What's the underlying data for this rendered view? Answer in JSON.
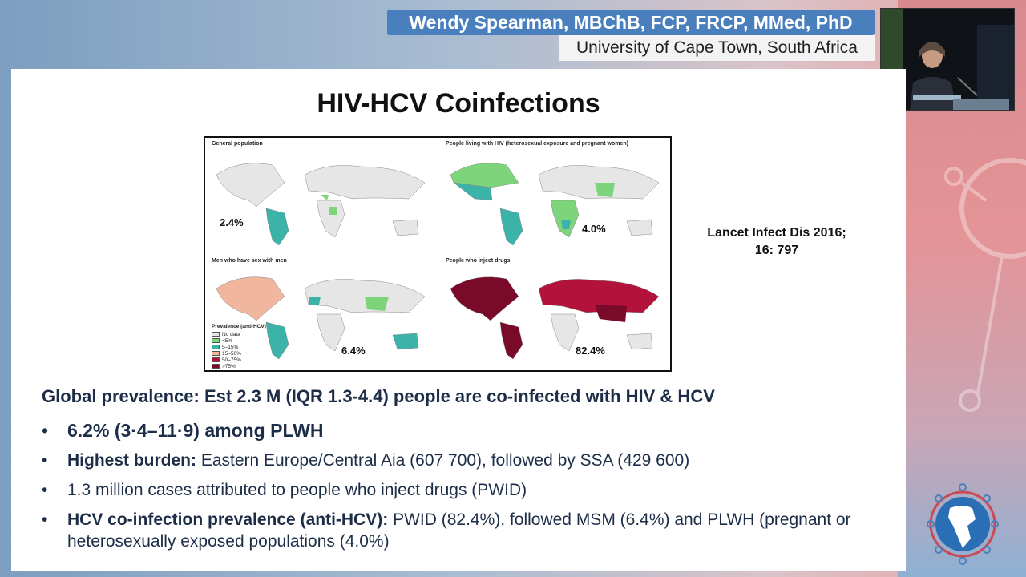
{
  "presenter": {
    "name": "Wendy Spearman, MBChB, FCP, FRCP, MMed, PhD",
    "affiliation": "University of Cape Town, South Africa"
  },
  "slide": {
    "title": "HIV-HCV Coinfections",
    "figure": {
      "panels": [
        {
          "title": "General population",
          "percent": "2.4%"
        },
        {
          "title": "People living with HIV (heterosexual exposure and pregnant women)",
          "percent": "4.0%"
        },
        {
          "title": "Men who have sex with men",
          "percent": "6.4%"
        },
        {
          "title": "People who inject drugs",
          "percent": "82.4%"
        }
      ],
      "legend": {
        "title": "Prevalence (anti-HCV)",
        "items": [
          {
            "label": "No data",
            "color": "#e6e6e6"
          },
          {
            "label": "<5%",
            "color": "#7ed47a"
          },
          {
            "label": "5–15%",
            "color": "#3bb3a8"
          },
          {
            "label": "15–50%",
            "color": "#f0b79e"
          },
          {
            "label": "50–75%",
            "color": "#b3123a"
          },
          {
            "label": ">75%",
            "color": "#7a0a2a"
          }
        ]
      }
    },
    "citation_line1": "Lancet Infect Dis 2016;",
    "citation_line2": "16: 797",
    "global_prevalence": "Global prevalence: Est 2.3 M (IQR 1.3-4.4) people are co-infected with HIV & HCV",
    "bullets": [
      {
        "bold": "6.2% (3·4–11·9) among PLWH",
        "text": ""
      },
      {
        "bold": "Highest burden:",
        "text": " Eastern Europe/Central Aia (607 700), followed by SSA (429 600)"
      },
      {
        "bold": "",
        "text": "1.3 million cases attributed to people who inject drugs (PWID)"
      },
      {
        "bold": "HCV co-infection prevalence (anti-HCV):",
        "text": " PWID (82.4%), followed MSM (6.4%) and PLWH (pregnant or heterosexually exposed populations (4.0%)"
      }
    ],
    "bullet_symbol": "•"
  }
}
